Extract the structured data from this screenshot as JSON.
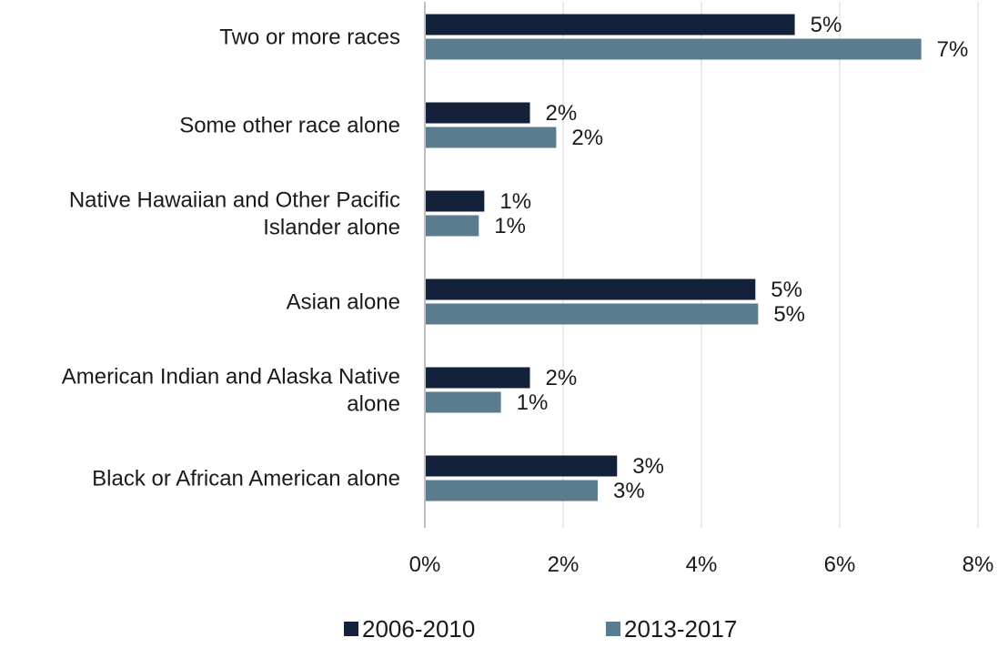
{
  "chart_data": {
    "type": "bar",
    "orientation": "horizontal",
    "title": "",
    "xlabel": "",
    "ylabel": "",
    "categories": [
      [
        "Two or more races"
      ],
      [
        "Some other race alone"
      ],
      [
        "Native Hawaiian and Other Pacific",
        "Islander alone"
      ],
      [
        "Asian alone"
      ],
      [
        "American Indian and Alaska Native",
        "alone"
      ],
      [
        "Black or African American alone"
      ]
    ],
    "series": [
      {
        "name": "2006-2010",
        "color": "#14213a",
        "values": [
          5.35,
          1.52,
          0.86,
          4.78,
          1.52,
          2.78
        ],
        "labels": [
          "5%",
          "2%",
          "1%",
          "5%",
          "2%",
          "3%"
        ]
      },
      {
        "name": "2013-2017",
        "color": "#5b7b8e",
        "values": [
          7.18,
          1.9,
          0.78,
          4.82,
          1.1,
          2.5
        ],
        "labels": [
          "7%",
          "2%",
          "1%",
          "5%",
          "1%",
          "3%"
        ]
      }
    ],
    "xlim": [
      0,
      8
    ],
    "xticks": [
      0,
      2,
      4,
      6,
      8
    ],
    "xtick_labels": [
      "0%",
      "2%",
      "4%",
      "6%",
      "8%"
    ],
    "grid": "vertical",
    "legend_position": "bottom"
  }
}
